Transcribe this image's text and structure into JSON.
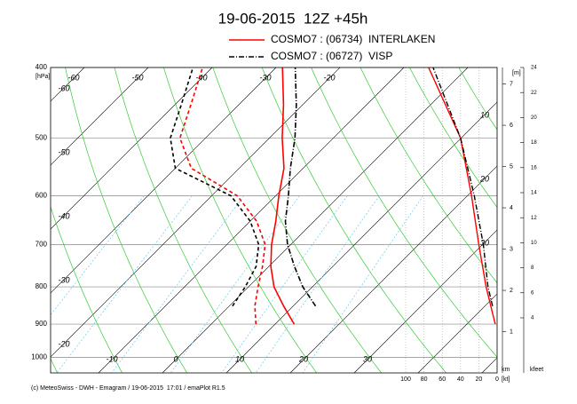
{
  "chart_data": {
    "type": "emagram",
    "title": "19-06-2015  12Z +45h",
    "footer": "(c) MeteoSwiss - DWH - Emagram / 19-06-2015  17:01 / emaPlot R1.5",
    "y_unit": "[hPa]",
    "log_y": true,
    "ylim": [
      1050,
      400
    ],
    "yticks": [
      400,
      500,
      600,
      700,
      800,
      900,
      1000
    ],
    "isotherm_labels_top": [
      -60,
      -50,
      -40,
      -30,
      -20
    ],
    "isotherm_labels_bottom": [
      -10,
      0,
      10,
      20,
      30
    ],
    "adiabat_labels_left": [
      -60,
      -50,
      -40,
      -30,
      -20
    ],
    "adiabat_labels_right": [
      10,
      20,
      30
    ],
    "y2_unit": "[m]",
    "y2_label": "km",
    "y2lim": [
      0,
      7.4
    ],
    "y2ticks": [
      1,
      2,
      3,
      4,
      5,
      6,
      7
    ],
    "y3_label": "kfeet",
    "y3lim": [
      -0.4,
      24
    ],
    "y3ticks": [
      4,
      6,
      8,
      10,
      12,
      14,
      16,
      18,
      20,
      22,
      24
    ],
    "wind_unit": "[kt]",
    "windlim": [
      0,
      100
    ],
    "windticks": [
      100,
      80,
      60,
      40,
      20,
      0
    ],
    "series": [
      {
        "name": "COSMO7 : (06734)  INTERLAKEN",
        "color": "#ff0000",
        "dash": "solid",
        "pressure": [
          900,
          850,
          800,
          750,
          700,
          650,
          600,
          550,
          500,
          450,
          400
        ],
        "temperature": [
          13,
          8.5,
          4,
          0.3,
          -3,
          -6,
          -9.5,
          -13,
          -18,
          -23,
          -29
        ],
        "dewpoint": [
          7,
          4,
          1.5,
          -1,
          -4,
          -9,
          -16,
          -27.5,
          -34,
          -37.5,
          -41.5
        ],
        "wind_pressure": [
          900,
          800,
          700,
          600,
          500,
          400
        ],
        "wind_speed": [
          2,
          12,
          20,
          28,
          40,
          75
        ]
      },
      {
        "name": "COSMO7 : (06727)  VISP",
        "color": "#000000",
        "dash": "dashdot",
        "pressure": [
          850,
          800,
          750,
          700,
          650,
          600,
          550,
          500,
          450,
          400
        ],
        "temperature": [
          13.5,
          8.5,
          4,
          -0.5,
          -4.5,
          -8,
          -12,
          -16,
          -21,
          -27
        ],
        "dewpoint": [
          0.5,
          -0.5,
          -2,
          -5,
          -10,
          -17,
          -30,
          -35.5,
          -39,
          -43
        ],
        "wind_pressure": [
          850,
          800,
          700,
          600,
          500,
          400
        ],
        "wind_speed": [
          5,
          10,
          15,
          25,
          40,
          70
        ]
      }
    ]
  }
}
